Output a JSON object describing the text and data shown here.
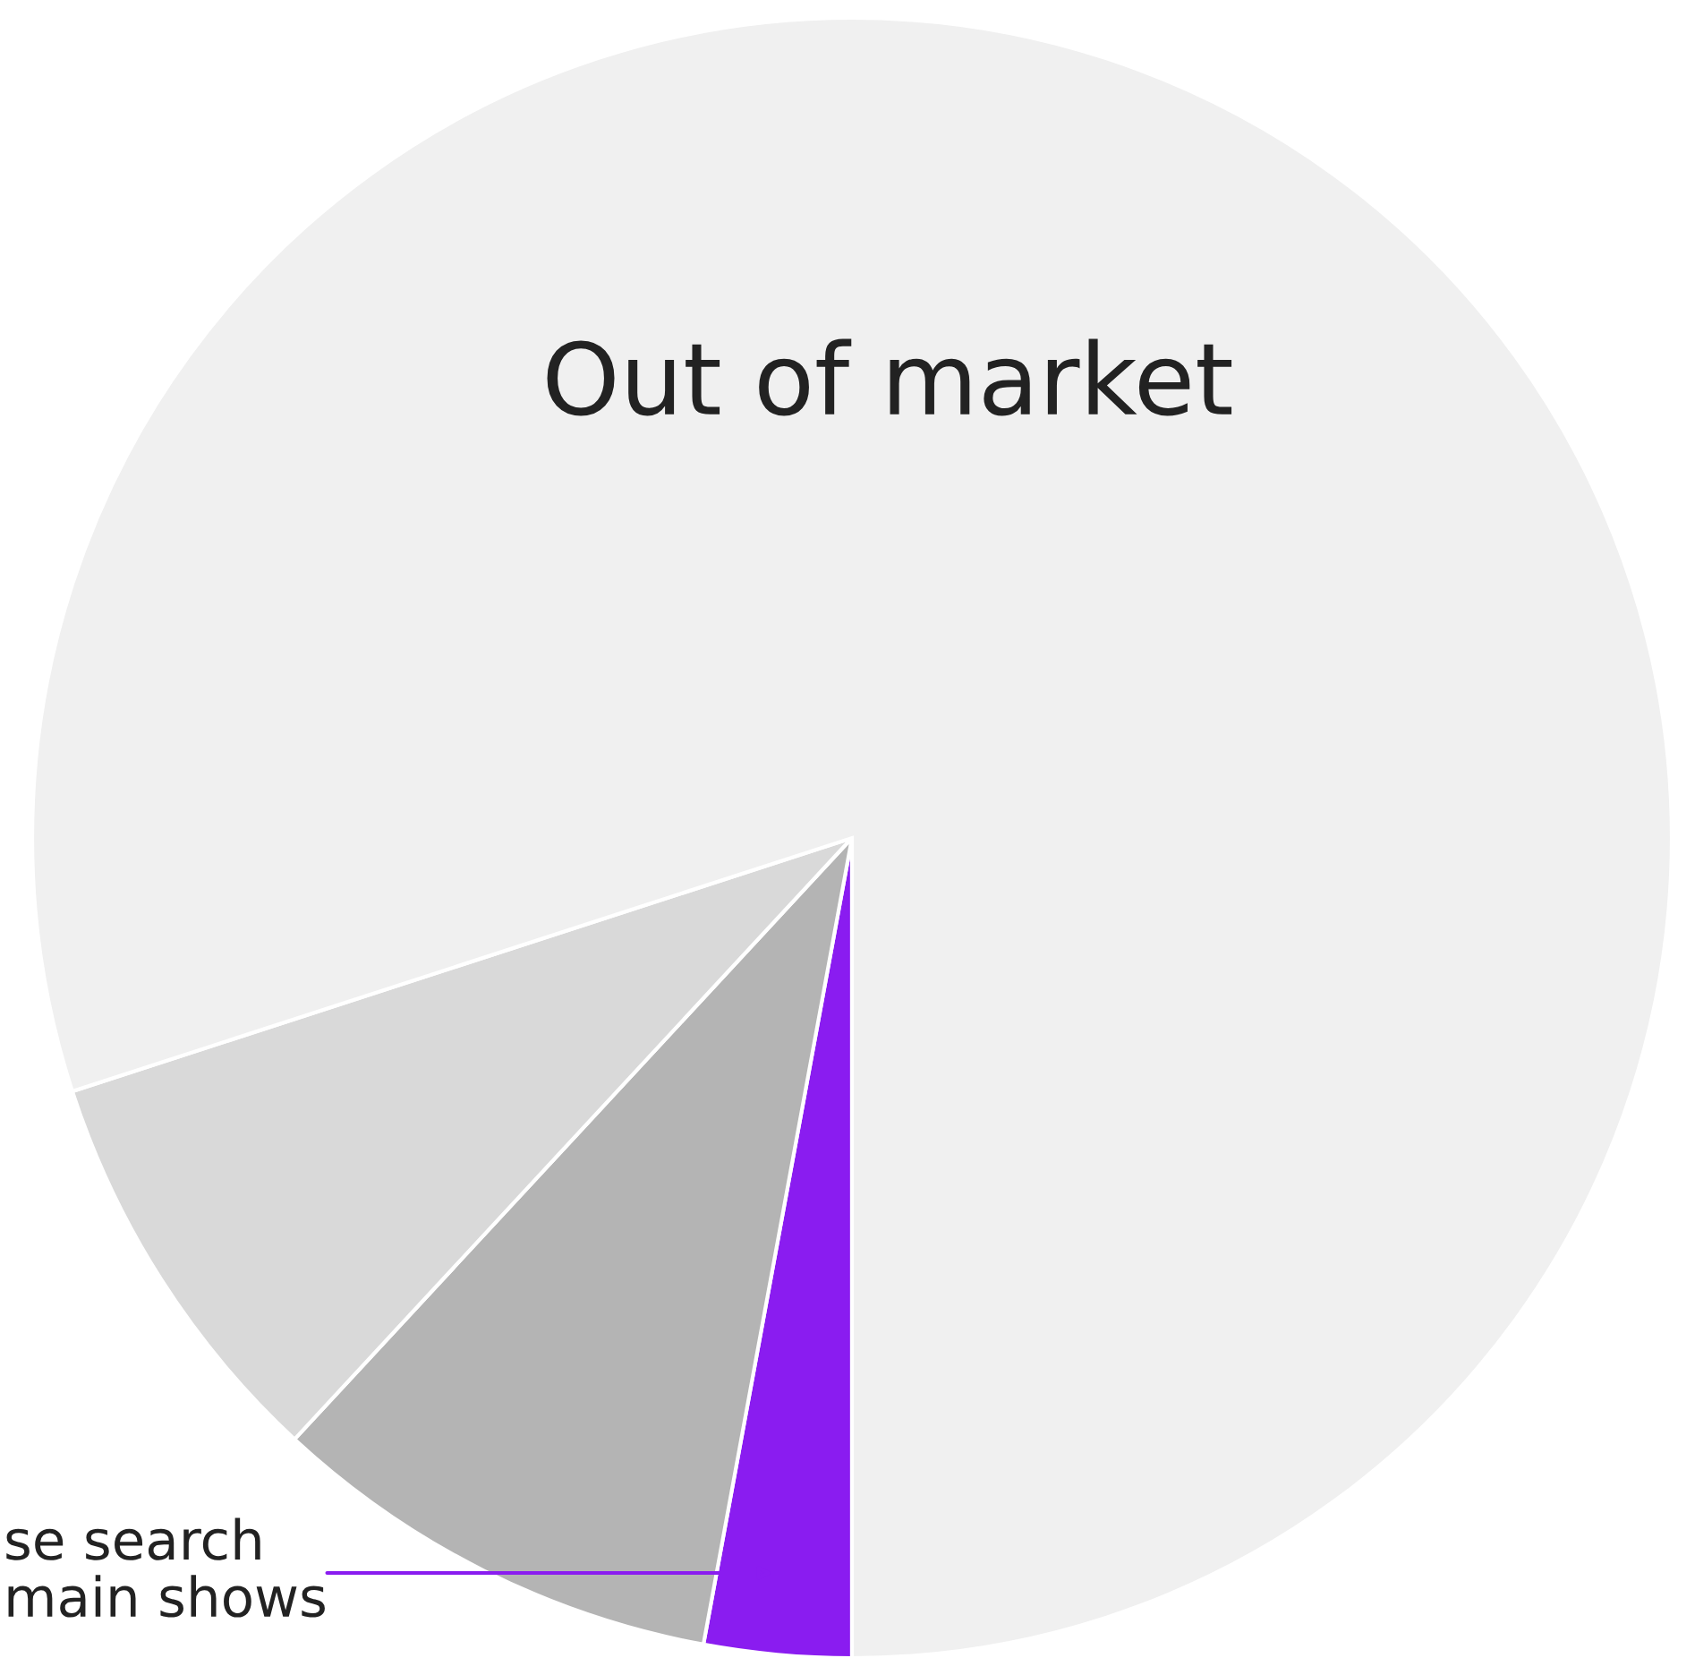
{
  "chart_data": {
    "type": "pie",
    "categories": [
      "se search\nmain shows",
      null,
      null,
      "Out of market"
    ],
    "values": [
      2.9,
      9.0,
      8.1,
      80.0
    ],
    "colors": [
      "#8a1cf0",
      "#b4b4b4",
      "#d9d9d9",
      "#f0f0f0"
    ],
    "legend": false
  }
}
